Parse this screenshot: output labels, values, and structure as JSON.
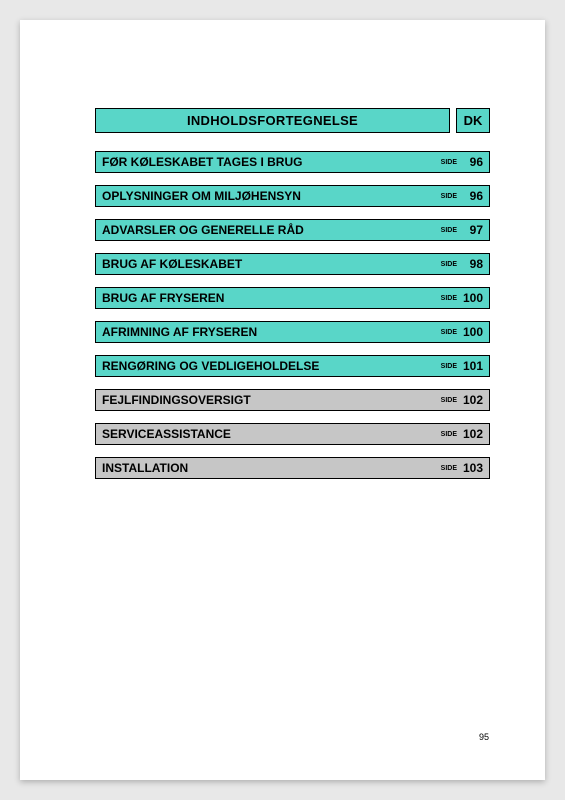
{
  "colors": {
    "header_bg": "#59d6c8",
    "row_teal": "#59d6c8",
    "row_grey": "#c6c6c6",
    "border": "#000000"
  },
  "header": {
    "title": "INDHOLDSFORTEGNELSE",
    "lang": "DK"
  },
  "side_label": "SIDE",
  "page_number": "95",
  "rows": [
    {
      "label": "FØR KØLESKABET TAGES I BRUG",
      "page": "96",
      "bg": "teal"
    },
    {
      "label": "OPLYSNINGER OM MILJØHENSYN",
      "page": "96",
      "bg": "teal"
    },
    {
      "label": "ADVARSLER OG GENERELLE RÅD",
      "page": "97",
      "bg": "teal"
    },
    {
      "label": "BRUG AF KØLESKABET",
      "page": "98",
      "bg": "teal"
    },
    {
      "label": "BRUG AF FRYSEREN",
      "page": "100",
      "bg": "teal"
    },
    {
      "label": "AFRIMNING AF FRYSEREN",
      "page": "100",
      "bg": "teal"
    },
    {
      "label": "RENGØRING OG VEDLIGEHOLDELSE",
      "page": "101",
      "bg": "teal"
    },
    {
      "label": "FEJLFINDINGSOVERSIGT",
      "page": "102",
      "bg": "grey"
    },
    {
      "label": "SERVICEASSISTANCE",
      "page": "102",
      "bg": "grey"
    },
    {
      "label": "INSTALLATION",
      "page": "103",
      "bg": "grey"
    }
  ]
}
